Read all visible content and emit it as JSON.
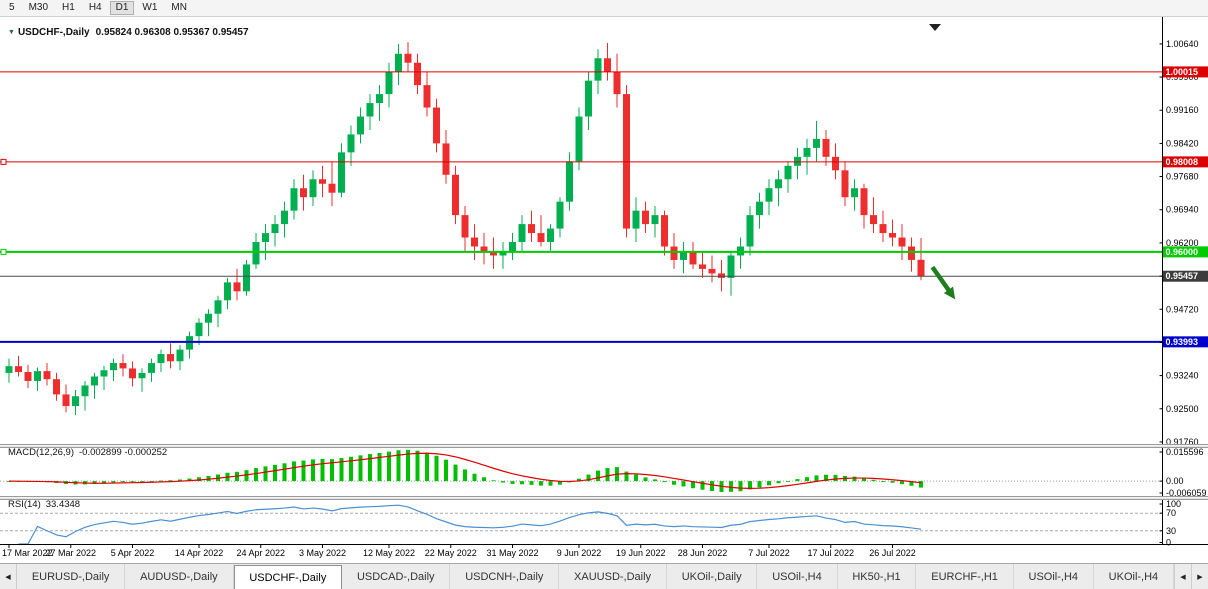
{
  "toolbar": {
    "timeframes": [
      "5",
      "M30",
      "H1",
      "H4",
      "D1",
      "W1",
      "MN"
    ],
    "active": "D1"
  },
  "header": {
    "title": "USDCHF-,Daily",
    "ohlc": "0.95824 0.96308 0.95367 0.95457"
  },
  "indicators": {
    "macd": {
      "label": "MACD(12,26,9)",
      "values": "-0.002899 -0.000252",
      "axis_labels": [
        "0.015596",
        "0.00",
        "-0.006059"
      ]
    },
    "rsi": {
      "label": "RSI(14)",
      "value": "33.4348",
      "axis_labels": [
        "100",
        "70",
        "30",
        "0"
      ],
      "levels": [
        70,
        30
      ]
    }
  },
  "tabs": {
    "scroll_left": "◀",
    "scroll_right": "▶",
    "items": [
      "EURUSD-,Daily",
      "AUDUSD-,Daily",
      "USDCHF-,Daily",
      "USDCAD-,Daily",
      "USDCNH-,Daily",
      "XAUUSD-,Daily",
      "UKOil-,Daily",
      "USOil-,H4",
      "HK50-,H1",
      "EURCHF-,H1",
      "USOil-,H4",
      "UKOil-,H4"
    ],
    "active_index": 2
  },
  "chart_data": {
    "type": "candlestick",
    "symbol": "USDCHF-",
    "period": "Daily",
    "current_bar": {
      "open": 0.95824,
      "high": 0.96308,
      "low": 0.95367,
      "close": 0.95457
    },
    "y_range": [
      0.91714,
      1.0124
    ],
    "y_axis_labels": [
      1.0064,
      0.999,
      0.9916,
      0.9842,
      0.9768,
      0.9694,
      0.962,
      0.9546,
      0.9472,
      0.9398,
      0.9324,
      0.925,
      0.9176
    ],
    "x_labels": [
      "17 Mar 2022",
      "27 Mar 2022",
      "5 Apr 2022",
      "14 Apr 2022",
      "24 Apr 2022",
      "3 May 2022",
      "12 May 2022",
      "22 May 2022",
      "31 May 2022",
      "9 Jun 2022",
      "19 Jun 2022",
      "28 Jun 2022",
      "7 Jul 2022",
      "17 Jul 2022",
      "26 Jul 2022"
    ],
    "x_label_positions": [
      0,
      6.5,
      13,
      20,
      26.5,
      33,
      40,
      46.5,
      53,
      60,
      66.5,
      73,
      80,
      86.5,
      93
    ],
    "hlines": [
      {
        "name": "resistance-line-1",
        "price": 1.00015,
        "label": "1.00015",
        "color": "#dd0000",
        "width": 1,
        "text_color": "#ffffff",
        "handle": false
      },
      {
        "name": "resistance-line-2",
        "price": 0.98008,
        "label": "0.98008",
        "color": "#dd0000",
        "width": 1,
        "text_color": "#ffffff",
        "handle": true
      },
      {
        "name": "support-line-green",
        "price": 0.96,
        "label": "0.96000",
        "color": "#00cc00",
        "width": 2,
        "text_color": "#ffffff",
        "handle": true
      },
      {
        "name": "current-price-line",
        "price": 0.95457,
        "label": "0.95457",
        "color": "#4a4a4a",
        "tag": "#3c3c3c",
        "width": 1,
        "text_color": "#ffffff",
        "handle": false
      },
      {
        "name": "support-line-blue",
        "price": 0.93993,
        "label": "0.93993",
        "color": "#0000cc",
        "width": 2,
        "text_color": "#ffffff",
        "handle": false
      }
    ],
    "arrow": {
      "i1": 97.2,
      "p1": 0.9566,
      "i2": 99.6,
      "p2": 0.9494,
      "color": "#1e7d1e"
    },
    "colors": {
      "up": "#00b050",
      "down": "#ee2e2e",
      "macd_bar": "#00c000",
      "macd_signal": "#e00000",
      "rsi": "#4a90d2"
    },
    "candles": [
      [
        0.933,
        0.9362,
        0.9308,
        0.9345
      ],
      [
        0.9345,
        0.9368,
        0.9322,
        0.9332
      ],
      [
        0.9332,
        0.9348,
        0.9296,
        0.9312
      ],
      [
        0.9312,
        0.9342,
        0.929,
        0.9334
      ],
      [
        0.9334,
        0.9352,
        0.9302,
        0.9316
      ],
      [
        0.9316,
        0.933,
        0.9268,
        0.9282
      ],
      [
        0.9282,
        0.9304,
        0.9242,
        0.9256
      ],
      [
        0.9256,
        0.9292,
        0.9236,
        0.9278
      ],
      [
        0.9278,
        0.9312,
        0.9246,
        0.9302
      ],
      [
        0.9302,
        0.933,
        0.9272,
        0.9322
      ],
      [
        0.9322,
        0.9346,
        0.9292,
        0.9336
      ],
      [
        0.9336,
        0.9362,
        0.9312,
        0.9352
      ],
      [
        0.9352,
        0.9372,
        0.9322,
        0.934
      ],
      [
        0.934,
        0.9356,
        0.93,
        0.9318
      ],
      [
        0.9318,
        0.934,
        0.9288,
        0.933
      ],
      [
        0.933,
        0.9362,
        0.931,
        0.9352
      ],
      [
        0.9352,
        0.9382,
        0.9332,
        0.9372
      ],
      [
        0.9372,
        0.9396,
        0.934,
        0.9356
      ],
      [
        0.9356,
        0.9392,
        0.9336,
        0.9382
      ],
      [
        0.9382,
        0.9422,
        0.9362,
        0.9412
      ],
      [
        0.9412,
        0.9452,
        0.9392,
        0.9442
      ],
      [
        0.9442,
        0.9472,
        0.9412,
        0.9462
      ],
      [
        0.9462,
        0.9502,
        0.9432,
        0.9492
      ],
      [
        0.9492,
        0.9542,
        0.9472,
        0.9532
      ],
      [
        0.9532,
        0.9562,
        0.9492,
        0.9512
      ],
      [
        0.9512,
        0.9582,
        0.9502,
        0.9572
      ],
      [
        0.9572,
        0.9642,
        0.9562,
        0.9622
      ],
      [
        0.9622,
        0.9662,
        0.9582,
        0.9642
      ],
      [
        0.9642,
        0.9682,
        0.9612,
        0.9662
      ],
      [
        0.9662,
        0.9712,
        0.9632,
        0.9692
      ],
      [
        0.9692,
        0.9762,
        0.9672,
        0.9742
      ],
      [
        0.9742,
        0.9772,
        0.9692,
        0.9722
      ],
      [
        0.9722,
        0.9782,
        0.9702,
        0.9762
      ],
      [
        0.9762,
        0.9792,
        0.9722,
        0.9752
      ],
      [
        0.9752,
        0.9802,
        0.9702,
        0.9732
      ],
      [
        0.9732,
        0.9842,
        0.9722,
        0.9822
      ],
      [
        0.9822,
        0.9882,
        0.9792,
        0.9862
      ],
      [
        0.9862,
        0.9922,
        0.9842,
        0.9902
      ],
      [
        0.9902,
        0.9952,
        0.9872,
        0.9932
      ],
      [
        0.9932,
        0.9972,
        0.9892,
        0.9952
      ],
      [
        0.9952,
        1.0022,
        0.9922,
        1.0002
      ],
      [
        1.0002,
        1.0064,
        0.9972,
        1.0042
      ],
      [
        1.0042,
        1.0068,
        1.0002,
        1.0022
      ],
      [
        1.0022,
        1.0042,
        0.9952,
        0.9972
      ],
      [
        0.9972,
        1.0002,
        0.9902,
        0.9922
      ],
      [
        0.9922,
        0.9942,
        0.9822,
        0.9842
      ],
      [
        0.9842,
        0.9872,
        0.9752,
        0.9772
      ],
      [
        0.9772,
        0.9792,
        0.9662,
        0.9682
      ],
      [
        0.9682,
        0.9702,
        0.9602,
        0.9632
      ],
      [
        0.9632,
        0.9662,
        0.9582,
        0.9612
      ],
      [
        0.9612,
        0.9642,
        0.9572,
        0.9602
      ],
      [
        0.9602,
        0.9632,
        0.9562,
        0.9592
      ],
      [
        0.9592,
        0.9622,
        0.9562,
        0.9602
      ],
      [
        0.9602,
        0.9642,
        0.9582,
        0.9622
      ],
      [
        0.9622,
        0.9682,
        0.9602,
        0.9662
      ],
      [
        0.9662,
        0.9692,
        0.9622,
        0.9642
      ],
      [
        0.9642,
        0.9682,
        0.9612,
        0.9622
      ],
      [
        0.9622,
        0.9662,
        0.9602,
        0.9652
      ],
      [
        0.9652,
        0.9722,
        0.9632,
        0.9712
      ],
      [
        0.9712,
        0.9822,
        0.9692,
        0.9802
      ],
      [
        0.9802,
        0.9922,
        0.9782,
        0.9902
      ],
      [
        0.9902,
        1.0002,
        0.9872,
        0.9982
      ],
      [
        0.9982,
        1.0052,
        0.9952,
        1.0032
      ],
      [
        1.0032,
        1.0066,
        0.9982,
        1.0002
      ],
      [
        1.0002,
        1.0042,
        0.9922,
        0.9952
      ],
      [
        0.9952,
        0.9972,
        0.9632,
        0.9652
      ],
      [
        0.9652,
        0.9722,
        0.9622,
        0.9692
      ],
      [
        0.9692,
        0.9712,
        0.9642,
        0.9662
      ],
      [
        0.9662,
        0.9702,
        0.9632,
        0.9682
      ],
      [
        0.9682,
        0.9692,
        0.9592,
        0.9612
      ],
      [
        0.9612,
        0.9642,
        0.9562,
        0.9582
      ],
      [
        0.9582,
        0.9622,
        0.9552,
        0.9602
      ],
      [
        0.9602,
        0.9622,
        0.9562,
        0.9572
      ],
      [
        0.9572,
        0.9602,
        0.9542,
        0.9562
      ],
      [
        0.9562,
        0.9592,
        0.9532,
        0.9552
      ],
      [
        0.9552,
        0.9582,
        0.9512,
        0.9542
      ],
      [
        0.9542,
        0.9602,
        0.9502,
        0.9592
      ],
      [
        0.9592,
        0.9632,
        0.9562,
        0.9612
      ],
      [
        0.9612,
        0.9702,
        0.9592,
        0.9682
      ],
      [
        0.9682,
        0.9732,
        0.9652,
        0.9712
      ],
      [
        0.9712,
        0.9762,
        0.9682,
        0.9742
      ],
      [
        0.9742,
        0.9782,
        0.9702,
        0.9762
      ],
      [
        0.9762,
        0.9802,
        0.9732,
        0.9792
      ],
      [
        0.9792,
        0.9832,
        0.9762,
        0.9812
      ],
      [
        0.9812,
        0.9852,
        0.9772,
        0.9832
      ],
      [
        0.9832,
        0.9892,
        0.9802,
        0.9852
      ],
      [
        0.9852,
        0.9872,
        0.9792,
        0.9812
      ],
      [
        0.9812,
        0.9842,
        0.9762,
        0.9782
      ],
      [
        0.9782,
        0.9802,
        0.9702,
        0.9722
      ],
      [
        0.9722,
        0.9762,
        0.9692,
        0.9742
      ],
      [
        0.9742,
        0.9752,
        0.9652,
        0.9682
      ],
      [
        0.9682,
        0.9722,
        0.9642,
        0.9662
      ],
      [
        0.9662,
        0.9692,
        0.9622,
        0.9642
      ],
      [
        0.9642,
        0.9672,
        0.9612,
        0.9632
      ],
      [
        0.9632,
        0.9662,
        0.9582,
        0.9612
      ],
      [
        0.9612,
        0.9632,
        0.9556,
        0.9582
      ],
      [
        0.95824,
        0.96308,
        0.95367,
        0.95457
      ]
    ]
  }
}
